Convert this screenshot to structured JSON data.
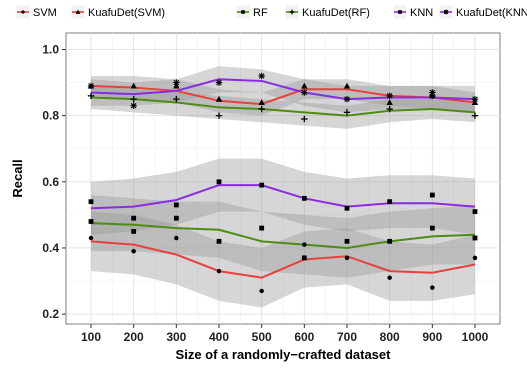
{
  "chart_data": {
    "type": "line",
    "xlabel": "Size of a randomly−crafted dataset",
    "ylabel": "Recall",
    "x": [
      100,
      200,
      300,
      400,
      500,
      600,
      700,
      800,
      900,
      1000
    ],
    "x_tick_labels": [
      "100",
      "200",
      "300",
      "400",
      "500",
      "600",
      "700",
      "800",
      "900",
      "1000"
    ],
    "ylim": [
      0.17,
      1.05
    ],
    "y_ticks": [
      0.2,
      0.4,
      0.6,
      0.8,
      1.0
    ],
    "y_tick_labels": [
      "0.2",
      "0.4",
      "0.6",
      "0.8",
      "1.0"
    ],
    "grid": true,
    "legend_position": "top",
    "legend": [
      {
        "name": "SVM",
        "color": "#e8403c",
        "marker": "circle"
      },
      {
        "name": "KuafuDet(SVM)",
        "color": "#e8403c",
        "marker": "triangle"
      },
      {
        "name": "RF",
        "color": "#4c8c10",
        "marker": "square"
      },
      {
        "name": "KuafuDet(RF)",
        "color": "#4c8c10",
        "marker": "plus"
      },
      {
        "name": "KNN",
        "color": "#8a2be2",
        "marker": "square"
      },
      {
        "name": "KuafuDet(KNN)",
        "color": "#8a2be2",
        "marker": "asterisk"
      }
    ],
    "series": [
      {
        "name": "SVM",
        "color": "#e8403c",
        "marker": "circle",
        "line": [
          0.42,
          0.41,
          0.38,
          0.33,
          0.31,
          0.365,
          0.375,
          0.33,
          0.325,
          0.35
        ],
        "points": [
          0.43,
          0.39,
          0.43,
          0.33,
          0.27,
          0.41,
          0.37,
          0.31,
          0.28,
          0.37
        ],
        "band": [
          [
            0.33,
            0.51
          ],
          [
            0.32,
            0.5
          ],
          [
            0.29,
            0.47
          ],
          [
            0.24,
            0.42
          ],
          [
            0.22,
            0.4
          ],
          [
            0.28,
            0.45
          ],
          [
            0.29,
            0.46
          ],
          [
            0.24,
            0.42
          ],
          [
            0.24,
            0.41
          ],
          [
            0.26,
            0.44
          ]
        ]
      },
      {
        "name": "KuafuDet(SVM)",
        "color": "#e8403c",
        "marker": "triangle",
        "line": [
          0.89,
          0.885,
          0.875,
          0.845,
          0.835,
          0.88,
          0.88,
          0.86,
          0.855,
          0.84
        ],
        "points": [
          0.89,
          0.89,
          0.89,
          0.85,
          0.84,
          0.89,
          0.89,
          0.84,
          0.86,
          0.84
        ],
        "band": [
          [
            0.86,
            0.92
          ],
          [
            0.85,
            0.92
          ],
          [
            0.84,
            0.91
          ],
          [
            0.81,
            0.88
          ],
          [
            0.8,
            0.87
          ],
          [
            0.85,
            0.91
          ],
          [
            0.85,
            0.91
          ],
          [
            0.83,
            0.89
          ],
          [
            0.82,
            0.89
          ],
          [
            0.81,
            0.87
          ]
        ]
      },
      {
        "name": "RF",
        "color": "#4c8c10",
        "marker": "square",
        "line": [
          0.475,
          0.47,
          0.46,
          0.455,
          0.42,
          0.41,
          0.4,
          0.42,
          0.435,
          0.44
        ],
        "points": [
          0.48,
          0.45,
          0.49,
          0.42,
          0.46,
          0.37,
          0.42,
          0.42,
          0.46,
          0.43
        ],
        "band": [
          [
            0.39,
            0.56
          ],
          [
            0.39,
            0.55
          ],
          [
            0.38,
            0.54
          ],
          [
            0.37,
            0.54
          ],
          [
            0.33,
            0.51
          ],
          [
            0.32,
            0.5
          ],
          [
            0.31,
            0.49
          ],
          [
            0.33,
            0.51
          ],
          [
            0.35,
            0.52
          ],
          [
            0.35,
            0.53
          ]
        ]
      },
      {
        "name": "KuafuDet(RF)",
        "color": "#4c8c10",
        "marker": "plus",
        "line": [
          0.855,
          0.85,
          0.84,
          0.825,
          0.82,
          0.81,
          0.8,
          0.815,
          0.82,
          0.81
        ],
        "points": [
          0.86,
          0.85,
          0.85,
          0.8,
          0.82,
          0.79,
          0.81,
          0.82,
          0.86,
          0.8
        ],
        "band": [
          [
            0.82,
            0.89
          ],
          [
            0.81,
            0.88
          ],
          [
            0.8,
            0.87
          ],
          [
            0.79,
            0.86
          ],
          [
            0.78,
            0.85
          ],
          [
            0.77,
            0.84
          ],
          [
            0.76,
            0.83
          ],
          [
            0.78,
            0.85
          ],
          [
            0.79,
            0.85
          ],
          [
            0.78,
            0.84
          ]
        ]
      },
      {
        "name": "KNN",
        "color": "#8a2be2",
        "marker": "square",
        "line": [
          0.52,
          0.525,
          0.545,
          0.59,
          0.59,
          0.55,
          0.525,
          0.535,
          0.535,
          0.525
        ],
        "points": [
          0.54,
          0.49,
          0.53,
          0.6,
          0.59,
          0.55,
          0.52,
          0.54,
          0.56,
          0.51
        ],
        "band": [
          [
            0.44,
            0.6
          ],
          [
            0.45,
            0.61
          ],
          [
            0.47,
            0.63
          ],
          [
            0.51,
            0.67
          ],
          [
            0.51,
            0.67
          ],
          [
            0.47,
            0.63
          ],
          [
            0.45,
            0.61
          ],
          [
            0.46,
            0.62
          ],
          [
            0.46,
            0.62
          ],
          [
            0.44,
            0.61
          ]
        ]
      },
      {
        "name": "KuafuDet(KNN)",
        "color": "#8a2be2",
        "marker": "asterisk",
        "line": [
          0.87,
          0.865,
          0.875,
          0.91,
          0.905,
          0.87,
          0.85,
          0.855,
          0.855,
          0.85
        ],
        "points": [
          0.89,
          0.83,
          0.9,
          0.9,
          0.92,
          0.87,
          0.85,
          0.86,
          0.87,
          0.85
        ],
        "band": [
          [
            0.83,
            0.91
          ],
          [
            0.83,
            0.9
          ],
          [
            0.84,
            0.91
          ],
          [
            0.87,
            0.95
          ],
          [
            0.87,
            0.94
          ],
          [
            0.83,
            0.91
          ],
          [
            0.81,
            0.89
          ],
          [
            0.82,
            0.89
          ],
          [
            0.82,
            0.89
          ],
          [
            0.81,
            0.89
          ]
        ]
      }
    ]
  }
}
